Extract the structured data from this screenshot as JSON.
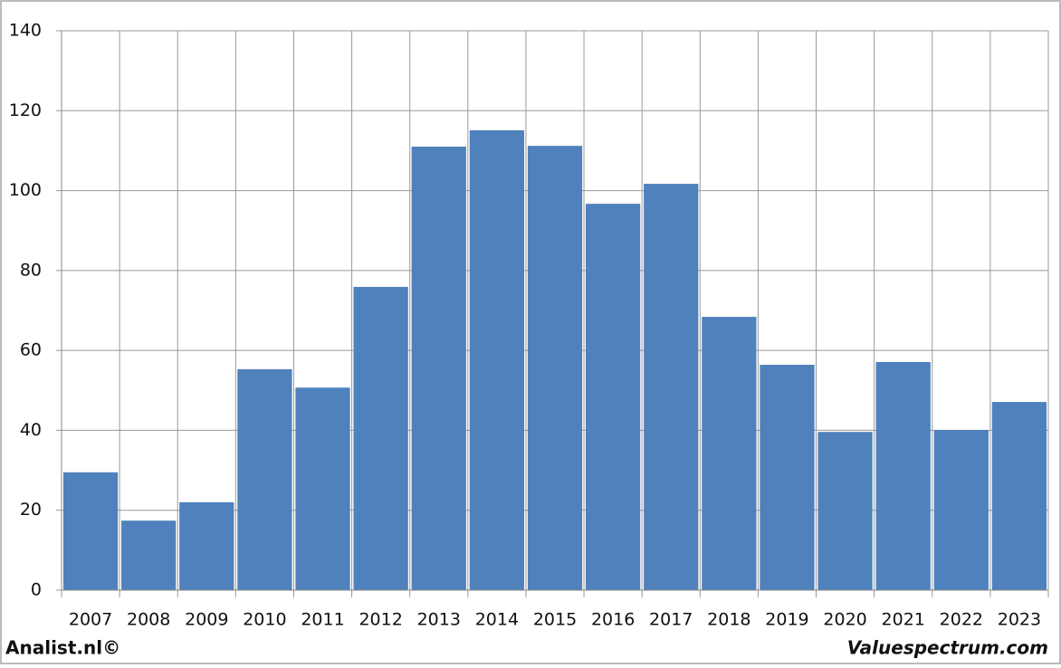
{
  "chart_data": {
    "type": "bar",
    "categories": [
      "2007",
      "2008",
      "2009",
      "2010",
      "2011",
      "2012",
      "2013",
      "2014",
      "2015",
      "2016",
      "2017",
      "2018",
      "2019",
      "2020",
      "2021",
      "2022",
      "2023"
    ],
    "values": [
      29.5,
      17.4,
      22.0,
      55.3,
      50.7,
      75.9,
      111.0,
      115.1,
      111.2,
      96.7,
      101.7,
      68.4,
      56.4,
      39.6,
      57.1,
      40.1,
      47.1
    ],
    "color": "#4f81bd",
    "ylim": [
      0,
      140
    ],
    "yticks": [
      0,
      20,
      40,
      60,
      80,
      100,
      120,
      140
    ],
    "grid": true
  },
  "footer": {
    "left": "Analist.nl©",
    "right": "Valuespectrum.com"
  }
}
